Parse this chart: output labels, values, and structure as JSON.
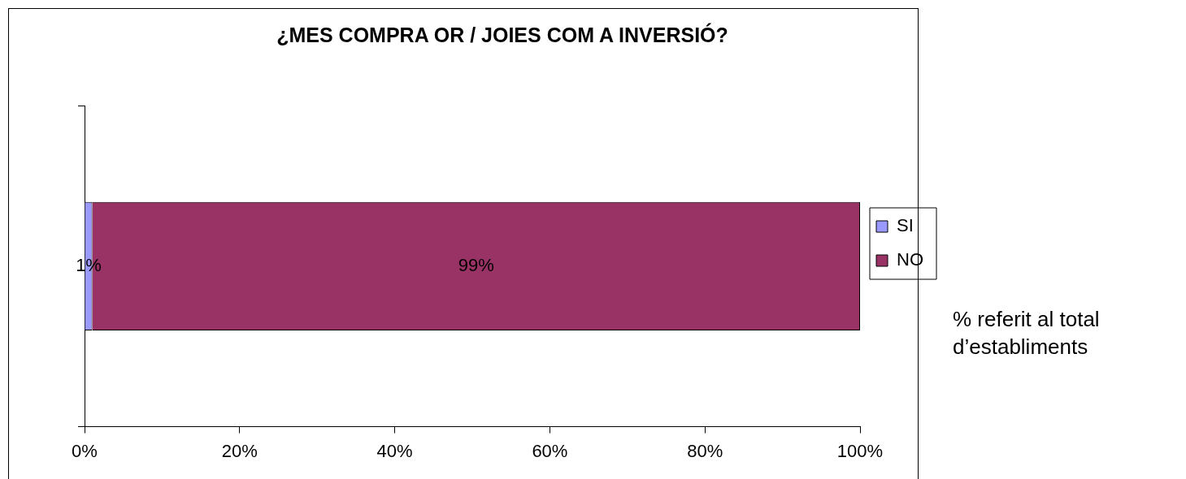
{
  "chart_data": {
    "type": "bar",
    "orientation": "horizontal",
    "stacked": true,
    "title": "¿MES COMPRA OR / JOIES COM A INVERSIÓ?",
    "categories": [
      null
    ],
    "series": [
      {
        "name": "SI",
        "color": "#9999ff",
        "values": [
          1
        ],
        "value_labels": [
          "1%"
        ]
      },
      {
        "name": "NO",
        "color": "#993366",
        "values": [
          99
        ],
        "value_labels": [
          "99%"
        ]
      }
    ],
    "xlim": [
      0,
      100
    ],
    "xticks": [
      {
        "value": 0,
        "label": "0%"
      },
      {
        "value": 20,
        "label": "20%"
      },
      {
        "value": 40,
        "label": "40%"
      },
      {
        "value": 60,
        "label": "60%"
      },
      {
        "value": 80,
        "label": "80%"
      },
      {
        "value": 100,
        "label": "100%"
      }
    ],
    "grid": false,
    "legend": "right",
    "annotations": [
      "% referit al total d’establiments"
    ]
  }
}
